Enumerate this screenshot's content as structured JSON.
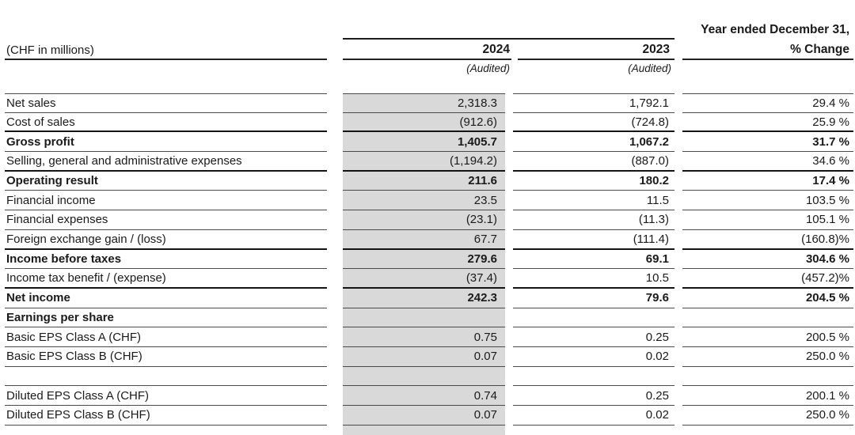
{
  "header": {
    "spanner": "Year ended December 31,",
    "unit_label": "(CHF in millions)",
    "col_2024": "2024",
    "col_2023": "2023",
    "col_change": "% Change",
    "audited_2024": "(Audited)",
    "audited_2023": "(Audited)"
  },
  "colors": {
    "shaded_column": "#d9d9d9",
    "rule_thin": "#4a4a4a",
    "rule_thick": "#141414",
    "text": "#1a1a1a"
  },
  "chart_data": {
    "type": "table",
    "title": "Year ended December 31,",
    "columns": [
      "(CHF in millions)",
      "2024",
      "2023",
      "% Change"
    ]
  },
  "rows": [
    {
      "label": "Net sales",
      "y2024": "2,318.3",
      "y2023": "1,792.1",
      "change": "29.4 %",
      "bold": false,
      "thick_bottom": false
    },
    {
      "label": "Cost of sales",
      "y2024": "(912.6)",
      "y2023": "(724.8)",
      "change": "25.9 %",
      "bold": false,
      "thick_bottom": true
    },
    {
      "label": "Gross profit",
      "y2024": "1,405.7",
      "y2023": "1,067.2",
      "change": "31.7 %",
      "bold": true,
      "thick_bottom": false
    },
    {
      "label": "Selling, general and administrative expenses",
      "y2024": "(1,194.2)",
      "y2023": "(887.0)",
      "change": "34.6 %",
      "bold": false,
      "thick_bottom": true
    },
    {
      "label": "Operating result",
      "y2024": "211.6",
      "y2023": "180.2",
      "change": "17.4 %",
      "bold": true,
      "thick_bottom": false
    },
    {
      "label": "Financial income",
      "y2024": "23.5",
      "y2023": "11.5",
      "change": "103.5 %",
      "bold": false,
      "thick_bottom": false
    },
    {
      "label": "Financial expenses",
      "y2024": "(23.1)",
      "y2023": "(11.3)",
      "change": "105.1 %",
      "bold": false,
      "thick_bottom": false
    },
    {
      "label": "Foreign exchange gain / (loss)",
      "y2024": "67.7",
      "y2023": "(111.4)",
      "change": "(160.8)%",
      "bold": false,
      "thick_bottom": true
    },
    {
      "label": "Income before taxes",
      "y2024": "279.6",
      "y2023": "69.1",
      "change": "304.6 %",
      "bold": true,
      "thick_bottom": false
    },
    {
      "label": "Income tax benefit / (expense)",
      "y2024": "(37.4)",
      "y2023": "10.5",
      "change": "(457.2)%",
      "bold": false,
      "thick_bottom": true
    },
    {
      "label": "Net income",
      "y2024": "242.3",
      "y2023": "79.6",
      "change": "204.5 %",
      "bold": true,
      "thick_bottom": false
    },
    {
      "label": "Earnings per share",
      "y2024": "",
      "y2023": "",
      "change": "",
      "bold": true,
      "thick_bottom": false
    },
    {
      "label": "Basic EPS Class A (CHF)",
      "y2024": "0.75",
      "y2023": "0.25",
      "change": "200.5 %",
      "bold": false,
      "thick_bottom": false
    },
    {
      "label": "Basic EPS Class B (CHF)",
      "y2024": "0.07",
      "y2023": "0.02",
      "change": "250.0 %",
      "bold": false,
      "thick_bottom": false
    },
    {
      "label": "",
      "y2024": "",
      "y2023": "",
      "change": "",
      "bold": false,
      "thick_bottom": false,
      "spacer": true
    },
    {
      "label": "Diluted EPS Class A (CHF)",
      "y2024": "0.74",
      "y2023": "0.25",
      "change": "200.1 %",
      "bold": false,
      "thick_bottom": false
    },
    {
      "label": "Diluted EPS Class B (CHF)",
      "y2024": "0.07",
      "y2023": "0.02",
      "change": "250.0 %",
      "bold": false,
      "thick_bottom": false
    }
  ]
}
